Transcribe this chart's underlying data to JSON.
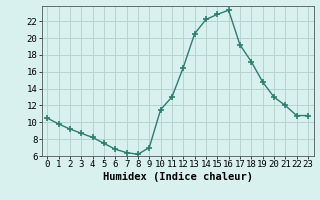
{
  "x": [
    0,
    1,
    2,
    3,
    4,
    5,
    6,
    7,
    8,
    9,
    10,
    11,
    12,
    13,
    14,
    15,
    16,
    17,
    18,
    19,
    20,
    21,
    22,
    23
  ],
  "y": [
    10.5,
    9.8,
    9.2,
    8.7,
    8.2,
    7.5,
    6.8,
    6.4,
    6.2,
    7.0,
    11.5,
    13.0,
    16.5,
    20.5,
    22.2,
    22.8,
    23.3,
    19.2,
    17.2,
    14.8,
    13.0,
    12.0,
    10.8,
    10.8
  ],
  "line_color": "#2e7d6e",
  "marker": "+",
  "marker_size": 4,
  "marker_edge_width": 1.2,
  "line_width": 1.0,
  "bg_color": "#d8f0ee",
  "grid_color": "#b8d4d0",
  "xlabel": "Humidex (Indice chaleur)",
  "ylim": [
    6,
    23.8
  ],
  "xlim": [
    -0.5,
    23.5
  ],
  "yticks": [
    6,
    8,
    10,
    12,
    14,
    16,
    18,
    20,
    22
  ],
  "xticks": [
    0,
    1,
    2,
    3,
    4,
    5,
    6,
    7,
    8,
    9,
    10,
    11,
    12,
    13,
    14,
    15,
    16,
    17,
    18,
    19,
    20,
    21,
    22,
    23
  ],
  "tick_label_fontsize": 6.5,
  "xlabel_fontsize": 7.5
}
